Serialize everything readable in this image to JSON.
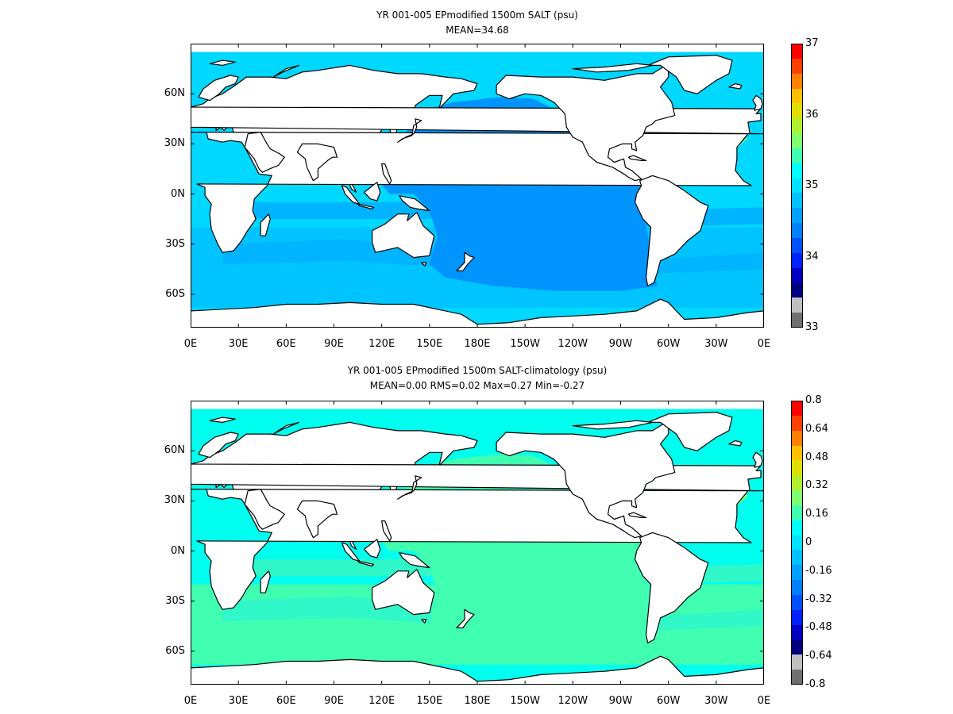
{
  "panels": [
    {
      "title_line1": "YR 001-005 EPmodified 1500m SALT (psu)",
      "title_line2": "MEAN=34.68",
      "colorbar_labels": [
        "37",
        "36",
        "35",
        "34",
        "33"
      ],
      "colorbar_colors": [
        "#ff0000",
        "#ff4000",
        "#ff8000",
        "#ffc000",
        "#e0e000",
        "#b0f030",
        "#80ff70",
        "#40ffb0",
        "#00ffff",
        "#00e0ff",
        "#00c0ff",
        "#00a0ff",
        "#0080ff",
        "#0050ff",
        "#0020ff",
        "#0000c0",
        "#000080",
        "#c0c0c0",
        "#707070"
      ],
      "ocean_colors": {
        "base": "#00d8ff",
        "pacific": "#0094ff",
        "band": "#00b4ff",
        "southern": "#00c4ff",
        "atlantic_high": "#40f0b0",
        "med": "#a0f060"
      }
    },
    {
      "title_line1": "YR 001-005 EPmodified 1500m SALT-climatology (psu)",
      "title_line2": "MEAN=0.00   RMS=0.02   Max=0.27   Min=-0.27",
      "colorbar_labels": [
        "0.8",
        "0.64",
        "0.48",
        "0.32",
        "0.16",
        "0",
        "-0.16",
        "-0.32",
        "-0.48",
        "-0.64",
        "-0.8"
      ],
      "colorbar_colors": [
        "#ff0000",
        "#ff4000",
        "#ff8000",
        "#ffc000",
        "#e0e000",
        "#b0f030",
        "#80ff70",
        "#40ffb0",
        "#00ffff",
        "#00e0ff",
        "#00c0ff",
        "#00a0ff",
        "#0080ff",
        "#0050ff",
        "#0020ff",
        "#0000c0",
        "#000080",
        "#c0c0c0",
        "#707070"
      ],
      "ocean_colors": {
        "base": "#00ffee",
        "pacific": "#40ffb0",
        "band": "#30f8c8",
        "southern": "#40ffb0",
        "atlantic_high": "#90ff70",
        "med": "#b0f030"
      }
    }
  ],
  "lat_labels": [
    "60N",
    "30N",
    "0N",
    "30S",
    "60S"
  ],
  "lon_labels": [
    "0E",
    "30E",
    "60E",
    "90E",
    "120E",
    "150E",
    "180E",
    "150W",
    "120W",
    "90W",
    "60W",
    "30W",
    "0E"
  ],
  "lat_values": [
    60,
    30,
    0,
    -30,
    -60
  ],
  "lon_values": [
    0,
    30,
    60,
    90,
    120,
    150,
    180,
    210,
    240,
    270,
    300,
    330,
    360
  ],
  "lat_range": [
    -80,
    90
  ],
  "lon_range": [
    0,
    360
  ]
}
